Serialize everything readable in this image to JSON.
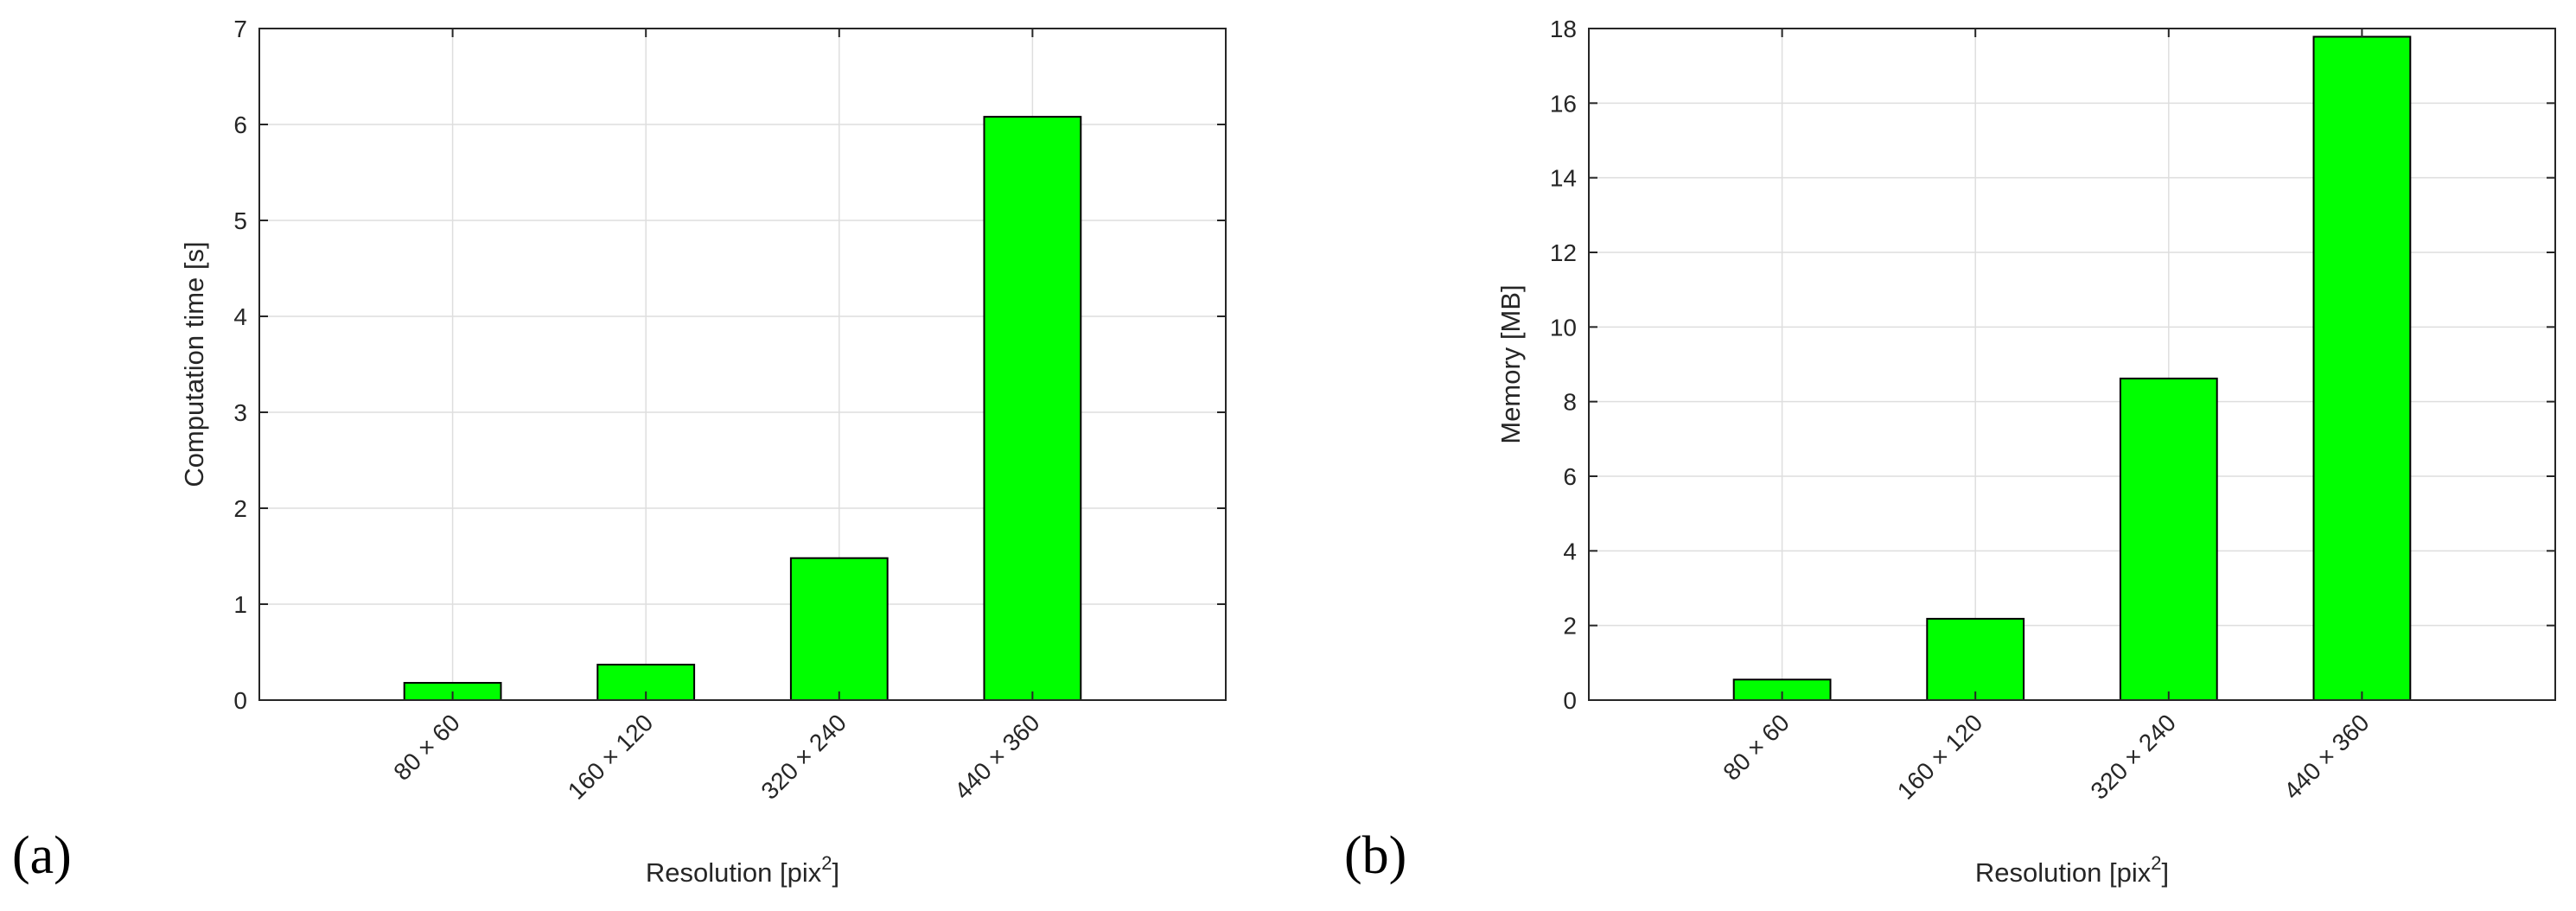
{
  "panels": [
    {
      "label": "(a)",
      "chart_data": {
        "type": "bar",
        "categories": [
          "80 × 60",
          "160 × 120",
          "320 × 240",
          "440 × 360"
        ],
        "values": [
          0.18,
          0.37,
          1.48,
          6.08
        ],
        "title": "",
        "xlabel": "Resolution [pix",
        "xlabel_sup": "2",
        "xlabel_end": "]",
        "ylabel": "Computation time [s]",
        "ylim": [
          0,
          7
        ],
        "yticks": [
          0,
          1,
          2,
          3,
          4,
          5,
          6,
          7
        ],
        "grid": true,
        "bar_color": "#00ff00",
        "edge_color": "#000000"
      }
    },
    {
      "label": "(b)",
      "chart_data": {
        "type": "bar",
        "categories": [
          "80 × 60",
          "160 × 120",
          "320 × 240",
          "440 × 360"
        ],
        "values": [
          0.55,
          2.18,
          8.62,
          17.78
        ],
        "title": "",
        "xlabel": "Resolution [pix",
        "xlabel_sup": "2",
        "xlabel_end": "]",
        "ylabel": "Memory [MB]",
        "ylim": [
          0,
          18
        ],
        "yticks": [
          0,
          2,
          4,
          6,
          8,
          10,
          12,
          14,
          16,
          18
        ],
        "grid": true,
        "bar_color": "#00ff00",
        "edge_color": "#000000"
      }
    }
  ]
}
